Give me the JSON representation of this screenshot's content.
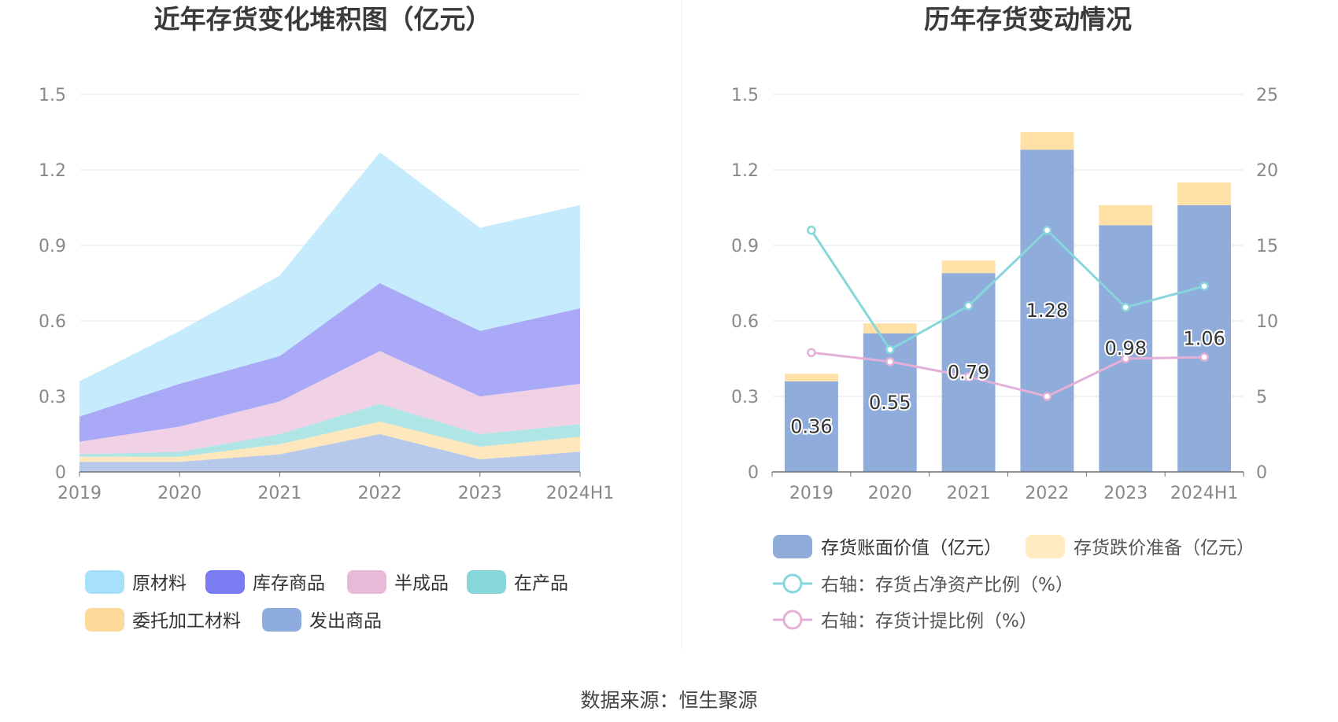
{
  "source_label": "数据来源：恒生聚源",
  "colors": {
    "raw": "#a6e0fa",
    "stock": "#7b7bf2",
    "semi": "#e8b9d9",
    "wip": "#86d7d9",
    "outsourced": "#fdd99a",
    "shipped": "#8facde",
    "bar_book": "#8facdb",
    "bar_reserve": "#ffe1a8",
    "line_ratio": "#86d6db",
    "line_provision": "#e4b0d8",
    "grid": "#e0e6f1",
    "axis": "#6e7079"
  },
  "chart_data": [
    {
      "type": "area",
      "title": "近年存货变化堆积图（亿元）",
      "categories": [
        "2019",
        "2020",
        "2021",
        "2022",
        "2023",
        "2024H1"
      ],
      "yticks": [
        "0",
        "0.3",
        "0.6",
        "0.9",
        "1.2",
        "1.5"
      ],
      "ylim": [
        0,
        1.5
      ],
      "series": [
        {
          "key": "shipped",
          "name": "发出商品",
          "values": [
            0.04,
            0.04,
            0.07,
            0.15,
            0.05,
            0.08
          ]
        },
        {
          "key": "outsourced",
          "name": "委托加工材料",
          "values": [
            0.02,
            0.02,
            0.04,
            0.05,
            0.05,
            0.06
          ]
        },
        {
          "key": "wip",
          "name": "在产品",
          "values": [
            0.01,
            0.02,
            0.04,
            0.07,
            0.05,
            0.05
          ]
        },
        {
          "key": "semi",
          "name": "半成品",
          "values": [
            0.05,
            0.1,
            0.13,
            0.21,
            0.15,
            0.16
          ]
        },
        {
          "key": "stock",
          "name": "库存商品",
          "values": [
            0.1,
            0.17,
            0.18,
            0.27,
            0.26,
            0.3
          ]
        },
        {
          "key": "raw",
          "name": "原材料",
          "values": [
            0.14,
            0.21,
            0.32,
            0.52,
            0.41,
            0.41
          ]
        }
      ],
      "legend_order": [
        "raw",
        "stock",
        "semi",
        "wip",
        "outsourced",
        "shipped"
      ]
    },
    {
      "type": "bar",
      "title": "历年存货变动情况",
      "categories": [
        "2019",
        "2020",
        "2021",
        "2022",
        "2023",
        "2024H1"
      ],
      "yticks_left": [
        "0",
        "0.3",
        "0.6",
        "0.9",
        "1.2",
        "1.5"
      ],
      "yticks_right": [
        "0",
        "5",
        "10",
        "15",
        "20",
        "25"
      ],
      "ylim_left": [
        0,
        1.5
      ],
      "ylim_right": [
        0,
        25
      ],
      "bars": [
        {
          "key": "book",
          "name": "存货账面价值（亿元）",
          "values": [
            0.36,
            0.55,
            0.79,
            1.28,
            0.98,
            1.06
          ],
          "labels": [
            "0.36",
            "0.55",
            "0.79",
            "1.28",
            "0.98",
            "1.06"
          ]
        },
        {
          "key": "reserve",
          "name": "存货跌价准备（亿元）",
          "values": [
            0.03,
            0.04,
            0.05,
            0.07,
            0.08,
            0.09
          ]
        }
      ],
      "lines": [
        {
          "key": "ratio",
          "name": "右轴：存货占净资产比例（%）",
          "values": [
            16.0,
            8.1,
            11.0,
            16.0,
            10.9,
            12.3
          ]
        },
        {
          "key": "provision",
          "name": "右轴：存货计提比例（%）",
          "values": [
            7.9,
            7.3,
            6.3,
            5.0,
            7.5,
            7.6
          ]
        }
      ]
    }
  ]
}
